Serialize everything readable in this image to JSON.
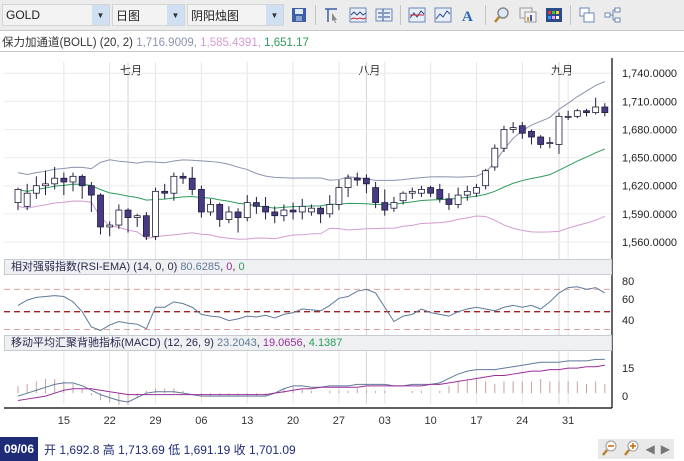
{
  "toolbar": {
    "symbol": "GOLD",
    "period": "日图",
    "chart_type": "阴阳烛图",
    "icons": [
      "save-icon",
      "cursor-icon",
      "indicator-icon",
      "layout-icon",
      "line-chart-icon",
      "area-chart-icon",
      "text-icon",
      "zoom-icon",
      "chart-props-icon",
      "color-grid-icon",
      "windows-icon",
      "tree-icon"
    ]
  },
  "indicator_bar": {
    "label": "保力加通道(BOLL) (20, 2)",
    "v1": "1,716.9009",
    "v2": "1,585.4391",
    "v3": "1,651.17",
    "c1": "#8c93b0",
    "c2": "#d49bd3",
    "c3": "#2e9b5a"
  },
  "rsi": {
    "label": "相对强弱指数(RSI-EMA) (14, 0, 0)",
    "v1": "80.6285",
    "v2": "0",
    "v3": "0"
  },
  "macd": {
    "label": "移动平均汇聚背驰指标(MACD) (12, 26, 9)",
    "v1": "23.2043",
    "v2": "19.0656",
    "v3": "4.1387"
  },
  "status": {
    "date": "09/06",
    "open_label": "开",
    "open": "1,692.8",
    "high_label": "高",
    "high": "1,713.69",
    "low_label": "低",
    "low": "1,691.19",
    "close_label": "收",
    "close": "1,701.09"
  },
  "chart_data": [
    {
      "type": "candlestick",
      "title": "GOLD 日图 阴阳烛图 with BOLL(20,2)",
      "months": [
        "七月",
        "八月",
        "九月"
      ],
      "x_ticks": [
        "15",
        "22",
        "29",
        "06",
        "13",
        "20",
        "27",
        "03",
        "10",
        "17",
        "24",
        "31"
      ],
      "y_ticks": [
        1740,
        1710,
        1680,
        1650,
        1620,
        1590,
        1560
      ],
      "ylim": [
        1545,
        1752
      ],
      "candles": [
        [
          1602,
          1616,
          1594,
          1618
        ],
        [
          1598,
          1612,
          1594,
          1622
        ],
        [
          1612,
          1620,
          1606,
          1630
        ],
        [
          1620,
          1622,
          1610,
          1636
        ],
        [
          1622,
          1628,
          1616,
          1640
        ],
        [
          1628,
          1624,
          1610,
          1634
        ],
        [
          1624,
          1630,
          1614,
          1634
        ],
        [
          1630,
          1620,
          1606,
          1632
        ],
        [
          1620,
          1610,
          1592,
          1624
        ],
        [
          1610,
          1576,
          1568,
          1612
        ],
        [
          1576,
          1578,
          1566,
          1582
        ],
        [
          1578,
          1594,
          1574,
          1600
        ],
        [
          1594,
          1586,
          1570,
          1596
        ],
        [
          1586,
          1588,
          1576,
          1590
        ],
        [
          1588,
          1566,
          1562,
          1592
        ],
        [
          1566,
          1614,
          1562,
          1618
        ],
        [
          1614,
          1612,
          1606,
          1622
        ],
        [
          1612,
          1630,
          1604,
          1634
        ],
        [
          1630,
          1628,
          1622,
          1634
        ],
        [
          1628,
          1616,
          1610,
          1640
        ],
        [
          1616,
          1592,
          1586,
          1620
        ],
        [
          1592,
          1600,
          1588,
          1606
        ],
        [
          1600,
          1584,
          1576,
          1602
        ],
        [
          1584,
          1592,
          1580,
          1598
        ],
        [
          1592,
          1586,
          1570,
          1596
        ],
        [
          1586,
          1602,
          1582,
          1610
        ],
        [
          1602,
          1598,
          1590,
          1608
        ],
        [
          1598,
          1592,
          1584,
          1608
        ],
        [
          1592,
          1588,
          1580,
          1598
        ],
        [
          1588,
          1594,
          1582,
          1600
        ],
        [
          1594,
          1592,
          1584,
          1602
        ],
        [
          1592,
          1598,
          1584,
          1606
        ],
        [
          1592,
          1596,
          1588,
          1600
        ],
        [
          1596,
          1590,
          1580,
          1598
        ],
        [
          1590,
          1600,
          1586,
          1610
        ],
        [
          1600,
          1618,
          1594,
          1626
        ],
        [
          1618,
          1628,
          1608,
          1632
        ],
        [
          1628,
          1626,
          1620,
          1634
        ],
        [
          1628,
          1622,
          1612,
          1632
        ],
        [
          1618,
          1602,
          1596,
          1624
        ],
        [
          1602,
          1594,
          1588,
          1616
        ],
        [
          1596,
          1602,
          1592,
          1608
        ],
        [
          1604,
          1612,
          1600,
          1614
        ],
        [
          1612,
          1614,
          1606,
          1618
        ],
        [
          1612,
          1616,
          1608,
          1620
        ],
        [
          1618,
          1612,
          1608,
          1620
        ],
        [
          1616,
          1606,
          1602,
          1622
        ],
        [
          1606,
          1600,
          1594,
          1612
        ],
        [
          1600,
          1610,
          1596,
          1618
        ],
        [
          1610,
          1614,
          1604,
          1620
        ],
        [
          1612,
          1618,
          1608,
          1622
        ],
        [
          1620,
          1636,
          1616,
          1638
        ],
        [
          1640,
          1660,
          1636,
          1664
        ],
        [
          1660,
          1680,
          1656,
          1684
        ],
        [
          1680,
          1682,
          1676,
          1688
        ],
        [
          1684,
          1676,
          1670,
          1688
        ],
        [
          1678,
          1672,
          1664,
          1680
        ],
        [
          1672,
          1664,
          1660,
          1674
        ],
        [
          1666,
          1666,
          1660,
          1672
        ],
        [
          1664,
          1694,
          1654,
          1698
        ],
        [
          1694,
          1694,
          1690,
          1700
        ],
        [
          1694,
          1700,
          1692,
          1702
        ],
        [
          1700,
          1698,
          1694,
          1702
        ],
        [
          1698,
          1704,
          1696,
          1714
        ],
        [
          1704,
          1698,
          1694,
          1708
        ]
      ],
      "boll_upper_color": "#8c93b0",
      "boll_lower_color": "#d49bd3",
      "boll_mid_color": "#2e9b5a",
      "candle_down_color": "#4a3a84",
      "candle_up_color": "#ffffff"
    },
    {
      "type": "line",
      "title": "RSI-EMA (14,0,0)",
      "y_ticks": [
        80,
        60,
        40
      ],
      "ylim": [
        30,
        95
      ],
      "series": [
        {
          "name": "RSI",
          "color": "#5f7a99",
          "values": [
            62,
            68,
            71,
            72,
            73,
            72,
            66,
            55,
            38,
            34,
            40,
            44,
            42,
            41,
            36,
            60,
            60,
            66,
            64,
            60,
            52,
            50,
            49,
            45,
            47,
            50,
            49,
            51,
            48,
            52,
            54,
            58,
            57,
            56,
            62,
            70,
            72,
            78,
            80,
            76,
            60,
            44,
            50,
            52,
            58,
            54,
            52,
            50,
            55,
            58,
            60,
            58,
            56,
            60,
            62,
            60,
            62,
            58,
            66,
            76,
            82,
            83,
            80,
            82,
            76
          ]
        }
      ],
      "reference_lines": [
        80,
        55,
        35
      ]
    },
    {
      "type": "line",
      "title": "MACD (12,26,9)",
      "y_ticks": [
        15,
        0
      ],
      "ylim": [
        -6,
        28
      ],
      "series": [
        {
          "name": "MACD",
          "color": "#5f7a99",
          "values": [
            -2,
            0,
            2,
            4,
            6,
            7,
            7,
            5,
            2,
            -1,
            -3,
            -5,
            -6,
            -3,
            0,
            1,
            1,
            1,
            0,
            -1,
            -2,
            -2,
            -2,
            -2,
            -2,
            -2,
            -2,
            -2,
            0,
            3,
            5,
            5,
            4,
            4,
            5,
            5,
            5,
            6,
            6,
            6,
            6,
            5,
            5,
            6,
            6,
            6,
            7,
            10,
            13,
            15,
            16,
            16,
            16,
            17,
            18,
            19,
            20,
            21,
            21,
            21,
            22,
            22,
            22,
            23,
            23
          ]
        },
        {
          "name": "Signal",
          "color": "#9b2d9b",
          "values": [
            -5,
            -4,
            -3,
            -2,
            0,
            2,
            3,
            3,
            3,
            2,
            1,
            0,
            -1,
            -1,
            -1,
            -1,
            -1,
            -1,
            -1,
            -1,
            -1,
            -1,
            -1,
            -1,
            -1,
            -1,
            -1,
            -1,
            0,
            1,
            2,
            3,
            3,
            4,
            4,
            4,
            4,
            4,
            5,
            5,
            5,
            5,
            5,
            5,
            5,
            6,
            6,
            7,
            8,
            9,
            10,
            11,
            12,
            12,
            13,
            14,
            15,
            15,
            16,
            16,
            17,
            17,
            18,
            18,
            19
          ]
        }
      ],
      "histogram_color": "#c8a0a0"
    }
  ]
}
